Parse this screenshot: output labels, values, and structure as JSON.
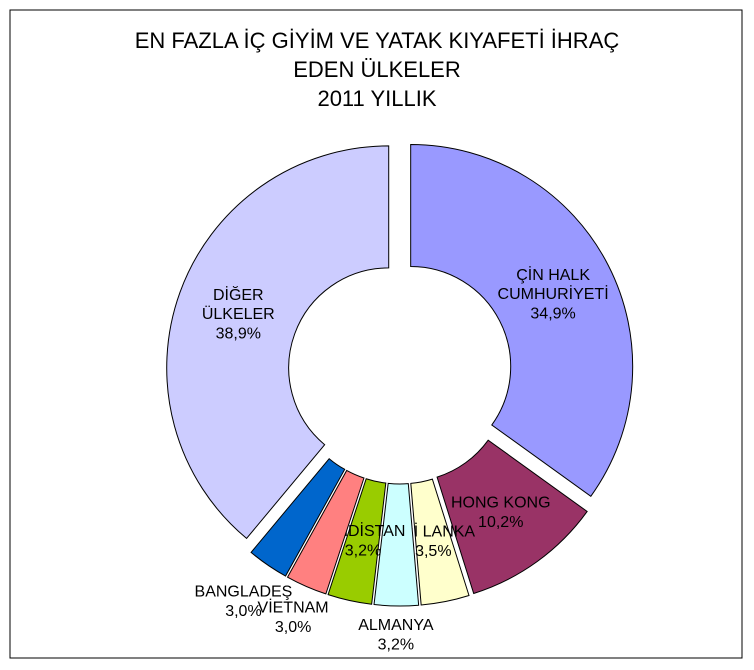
{
  "chart_data": {
    "type": "donut",
    "title": "EN FAZLA İÇ GİYİM VE YATAK KIYAFETİ İHRAÇ\nEDEN ÜLKELER\n2011 YILLIK",
    "categories": [
      "ÇİN HALK\nCUMHURİYETİ",
      "HONG KONG",
      "SRİ LANKA",
      "ALMANYA",
      "HİNDİSTAN",
      "VİETNAM",
      "BANGLADEŞ",
      "DİĞER\nÜLKELER"
    ],
    "values": [
      34.9,
      10.2,
      3.5,
      3.2,
      3.2,
      3.0,
      3.0,
      38.9
    ],
    "value_labels": [
      "34,9%",
      "10,2%",
      "3,5%",
      "3,2%",
      "3,2%",
      "3,0%",
      "3,0%",
      "38,9%"
    ],
    "colors": [
      "#9999ff",
      "#993366",
      "#ffffcc",
      "#ccffff",
      "#99cc00",
      "#ff8080",
      "#0066cc",
      "#ccccff"
    ]
  }
}
